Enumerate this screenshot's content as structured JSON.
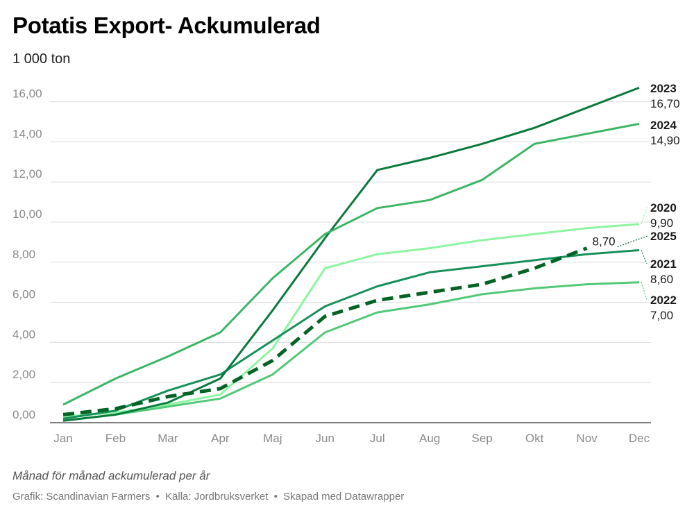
{
  "title": "Potatis Export- Ackumulerad",
  "subtitle": "1 000 ton",
  "note": "Månad för månad ackumulerad per år",
  "credits": {
    "grafik": "Grafik: Scandinavian Farmers",
    "kalla": "Källa: Jordbruksverket",
    "skapad": "Skapad med Datawrapper",
    "separator": "•"
  },
  "chart_data": {
    "type": "line",
    "title": "Potatis Export- Ackumulerad",
    "ylabel": "1 000 ton",
    "xlabel": "",
    "ylim": [
      0,
      17
    ],
    "yticks": [
      0,
      2,
      4,
      6,
      8,
      10,
      12,
      14,
      16
    ],
    "ytick_labels": [
      "0,00",
      "2,00",
      "4,00",
      "6,00",
      "8,00",
      "10,00",
      "12,00",
      "14,00",
      "16,00"
    ],
    "categories": [
      "Jan",
      "Feb",
      "Mar",
      "Apr",
      "Maj",
      "Jun",
      "Jul",
      "Aug",
      "Sep",
      "Okt",
      "Nov",
      "Dec"
    ],
    "grid": true,
    "series": [
      {
        "name": "2020",
        "end_label": "9,90",
        "color": "#8ef5a2",
        "width": 3,
        "dashed": false,
        "values": [
          0.3,
          0.5,
          0.9,
          1.4,
          3.7,
          7.7,
          8.4,
          8.7,
          9.1,
          9.4,
          9.7,
          9.9
        ]
      },
      {
        "name": "2021",
        "end_label": "8,60",
        "color": "#17905a",
        "width": 3,
        "dashed": false,
        "values": [
          0.2,
          0.6,
          1.6,
          2.4,
          4.1,
          5.8,
          6.8,
          7.5,
          7.8,
          8.1,
          8.4,
          8.6
        ]
      },
      {
        "name": "2022",
        "end_label": "7,00",
        "color": "#52c878",
        "width": 3,
        "dashed": false,
        "values": [
          0.1,
          0.4,
          0.8,
          1.2,
          2.4,
          4.5,
          5.5,
          5.9,
          6.4,
          6.7,
          6.9,
          7.0
        ]
      },
      {
        "name": "2023",
        "end_label": "16,70",
        "color": "#0a7a3c",
        "width": 3,
        "dashed": false,
        "values": [
          0.1,
          0.4,
          1.0,
          2.2,
          5.6,
          9.2,
          12.6,
          13.2,
          13.9,
          14.7,
          15.7,
          16.7
        ]
      },
      {
        "name": "2024",
        "end_label": "14,90",
        "color": "#3db566",
        "width": 3,
        "dashed": false,
        "values": [
          0.9,
          2.2,
          3.3,
          4.5,
          7.2,
          9.4,
          10.7,
          11.1,
          12.1,
          13.9,
          14.4,
          14.9
        ]
      },
      {
        "name": "2025",
        "end_label": "8,70",
        "color": "#036325",
        "width": 5,
        "dashed": true,
        "values": [
          0.4,
          0.7,
          1.3,
          1.7,
          3.1,
          5.3,
          6.1,
          6.5,
          6.9,
          7.7,
          8.7,
          null
        ]
      }
    ]
  }
}
